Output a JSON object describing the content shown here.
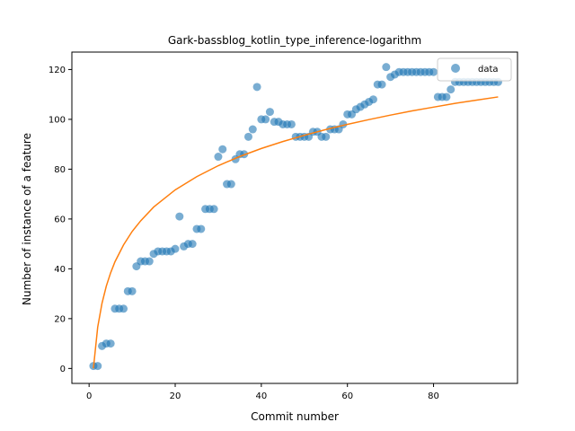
{
  "chart_data": {
    "type": "scatter",
    "title": "Gark-bassblog_kotlin_type_inference-logarithm",
    "xlabel": "Commit number",
    "ylabel": "Number of instance of a feature",
    "xlim": [
      -4,
      99.5
    ],
    "ylim": [
      -6,
      127
    ],
    "xticks": [
      0,
      20,
      40,
      60,
      80
    ],
    "yticks": [
      0,
      20,
      40,
      60,
      80,
      100,
      120
    ],
    "grid": false,
    "legend_position": "top-right",
    "colors": {
      "scatter": "#1f77b4",
      "fit": "#ff7f0e"
    },
    "series": [
      {
        "name": "data",
        "kind": "scatter",
        "x": [
          1,
          2,
          3,
          4,
          5,
          6,
          7,
          8,
          9,
          10,
          11,
          12,
          13,
          14,
          15,
          16,
          17,
          18,
          19,
          20,
          21,
          22,
          23,
          24,
          25,
          26,
          27,
          28,
          29,
          30,
          31,
          32,
          33,
          34,
          35,
          36,
          37,
          38,
          39,
          40,
          41,
          42,
          43,
          44,
          45,
          46,
          47,
          48,
          49,
          50,
          51,
          52,
          53,
          54,
          55,
          56,
          57,
          58,
          59,
          60,
          61,
          62,
          63,
          64,
          65,
          66,
          67,
          68,
          69,
          70,
          71,
          72,
          73,
          74,
          75,
          76,
          77,
          78,
          79,
          80,
          81,
          82,
          83,
          84,
          85,
          86,
          87,
          88,
          89,
          90,
          91,
          92,
          93,
          94,
          95
        ],
        "y": [
          1,
          1,
          9,
          10,
          10,
          24,
          24,
          24,
          31,
          31,
          41,
          43,
          43,
          43,
          46,
          47,
          47,
          47,
          47,
          48,
          61,
          49,
          50,
          50,
          56,
          56,
          64,
          64,
          64,
          85,
          88,
          74,
          74,
          84,
          86,
          86,
          93,
          96,
          113,
          100,
          100,
          103,
          99,
          99,
          98,
          98,
          98,
          93,
          93,
          93,
          93,
          95,
          95,
          93,
          93,
          96,
          96,
          96,
          98,
          102,
          102,
          104,
          105,
          106,
          107,
          108,
          114,
          114,
          121,
          117,
          118,
          119,
          119,
          119,
          119,
          119,
          119,
          119,
          119,
          119,
          109,
          109,
          109,
          112,
          115,
          115,
          115,
          115,
          115,
          115,
          115,
          115,
          115,
          115,
          115
        ]
      },
      {
        "kind": "line",
        "fit": "logarithm",
        "x": [
          1,
          2,
          3,
          4,
          5,
          6,
          8,
          10,
          12,
          15,
          20,
          25,
          30,
          35,
          40,
          45,
          50,
          55,
          60,
          65,
          70,
          75,
          80,
          85,
          90,
          95
        ],
        "y": [
          0,
          16.6,
          26.2,
          33.1,
          38.4,
          42.8,
          49.6,
          55.0,
          59.3,
          64.8,
          71.7,
          77.0,
          81.4,
          85.1,
          88.3,
          91.1,
          93.6,
          95.9,
          98.0,
          99.9,
          101.7,
          103.4,
          104.9,
          106.4,
          107.7,
          109.0
        ]
      }
    ]
  }
}
